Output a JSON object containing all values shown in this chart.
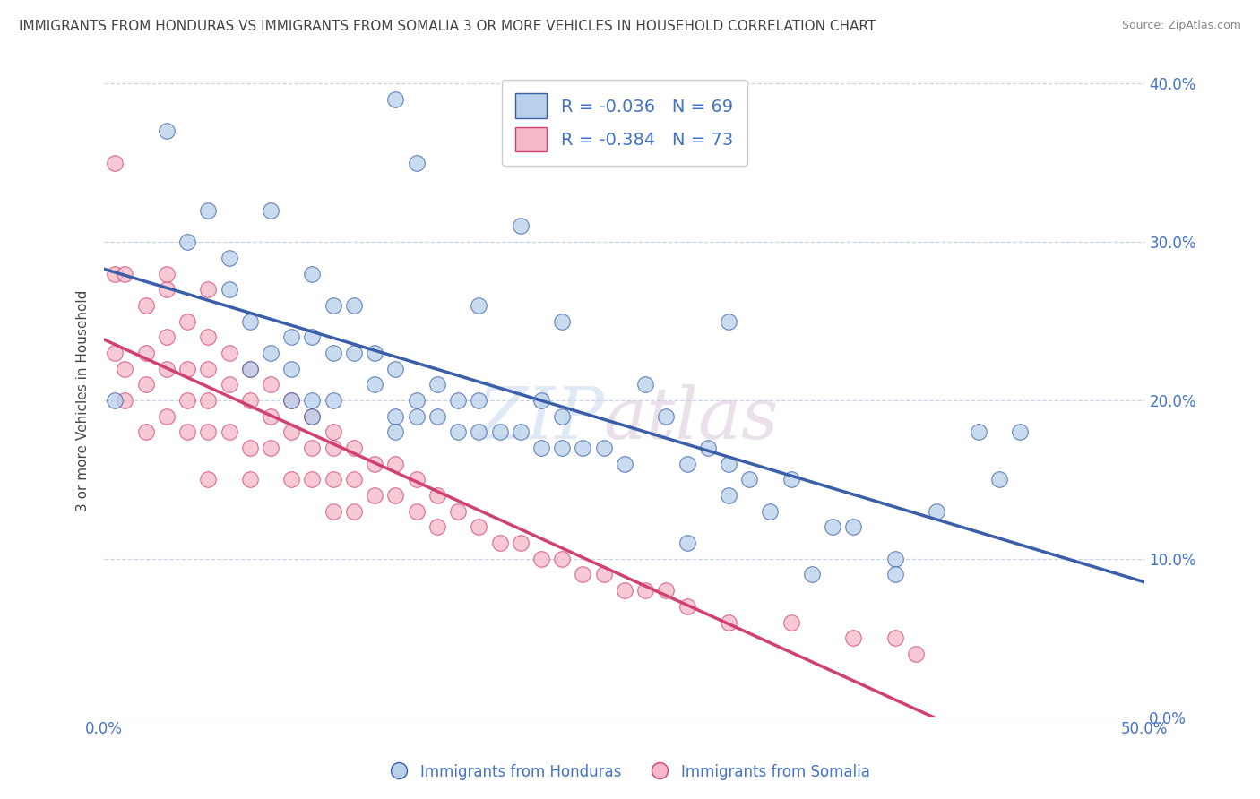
{
  "title": "IMMIGRANTS FROM HONDURAS VS IMMIGRANTS FROM SOMALIA 3 OR MORE VEHICLES IN HOUSEHOLD CORRELATION CHART",
  "source": "Source: ZipAtlas.com",
  "ylabel": "3 or more Vehicles in Household",
  "legend_blue_label": "Immigrants from Honduras",
  "legend_pink_label": "Immigrants from Somalia",
  "R_blue": -0.036,
  "N_blue": 69,
  "R_pink": -0.384,
  "N_pink": 73,
  "watermark_zip": "ZIP",
  "watermark_atlas": "atlas",
  "xlim": [
    0.0,
    0.5
  ],
  "ylim": [
    0.0,
    0.4
  ],
  "xticks": [
    0.0,
    0.1,
    0.2,
    0.3,
    0.4,
    0.5
  ],
  "yticks": [
    0.0,
    0.1,
    0.2,
    0.3,
    0.4
  ],
  "blue_color": "#b8d0ea",
  "pink_color": "#f5b8c8",
  "blue_line_color": "#3a5fa8",
  "pink_line_color": "#d04070",
  "title_color": "#444444",
  "tick_color": "#4472c4",
  "grid_color": "#c8d4e8",
  "background_color": "#ffffff",
  "blue_scatter_x": [
    0.005,
    0.03,
    0.04,
    0.05,
    0.06,
    0.07,
    0.08,
    0.08,
    0.09,
    0.09,
    0.1,
    0.1,
    0.1,
    0.11,
    0.11,
    0.12,
    0.12,
    0.13,
    0.13,
    0.14,
    0.14,
    0.14,
    0.15,
    0.15,
    0.16,
    0.16,
    0.17,
    0.17,
    0.18,
    0.18,
    0.19,
    0.2,
    0.2,
    0.21,
    0.21,
    0.22,
    0.22,
    0.23,
    0.24,
    0.25,
    0.26,
    0.27,
    0.28,
    0.29,
    0.3,
    0.3,
    0.31,
    0.32,
    0.33,
    0.35,
    0.36,
    0.38,
    0.4,
    0.43,
    0.44,
    0.06,
    0.07,
    0.09,
    0.1,
    0.11,
    0.14,
    0.15,
    0.18,
    0.22,
    0.28,
    0.3,
    0.34,
    0.38,
    0.42
  ],
  "blue_scatter_y": [
    0.2,
    0.37,
    0.3,
    0.32,
    0.29,
    0.25,
    0.32,
    0.23,
    0.22,
    0.2,
    0.28,
    0.24,
    0.2,
    0.26,
    0.23,
    0.26,
    0.23,
    0.23,
    0.21,
    0.22,
    0.19,
    0.18,
    0.2,
    0.19,
    0.21,
    0.19,
    0.2,
    0.18,
    0.2,
    0.18,
    0.18,
    0.31,
    0.18,
    0.2,
    0.17,
    0.19,
    0.17,
    0.17,
    0.17,
    0.16,
    0.21,
    0.19,
    0.16,
    0.17,
    0.16,
    0.14,
    0.15,
    0.13,
    0.15,
    0.12,
    0.12,
    0.1,
    0.13,
    0.15,
    0.18,
    0.27,
    0.22,
    0.24,
    0.19,
    0.2,
    0.39,
    0.35,
    0.26,
    0.25,
    0.11,
    0.25,
    0.09,
    0.09,
    0.18
  ],
  "pink_scatter_x": [
    0.005,
    0.005,
    0.01,
    0.01,
    0.02,
    0.02,
    0.02,
    0.02,
    0.03,
    0.03,
    0.03,
    0.03,
    0.04,
    0.04,
    0.04,
    0.04,
    0.05,
    0.05,
    0.05,
    0.05,
    0.05,
    0.06,
    0.06,
    0.06,
    0.07,
    0.07,
    0.07,
    0.07,
    0.08,
    0.08,
    0.08,
    0.09,
    0.09,
    0.09,
    0.1,
    0.1,
    0.1,
    0.11,
    0.11,
    0.11,
    0.11,
    0.12,
    0.12,
    0.12,
    0.13,
    0.13,
    0.14,
    0.14,
    0.15,
    0.15,
    0.16,
    0.16,
    0.17,
    0.18,
    0.19,
    0.2,
    0.21,
    0.22,
    0.23,
    0.24,
    0.25,
    0.26,
    0.27,
    0.28,
    0.3,
    0.33,
    0.36,
    0.38,
    0.39,
    0.005,
    0.01,
    0.03,
    0.05
  ],
  "pink_scatter_y": [
    0.28,
    0.23,
    0.22,
    0.2,
    0.26,
    0.23,
    0.21,
    0.18,
    0.27,
    0.24,
    0.22,
    0.19,
    0.25,
    0.22,
    0.2,
    0.18,
    0.24,
    0.22,
    0.2,
    0.18,
    0.15,
    0.23,
    0.21,
    0.18,
    0.22,
    0.2,
    0.17,
    0.15,
    0.21,
    0.19,
    0.17,
    0.2,
    0.18,
    0.15,
    0.19,
    0.17,
    0.15,
    0.18,
    0.17,
    0.15,
    0.13,
    0.17,
    0.15,
    0.13,
    0.16,
    0.14,
    0.16,
    0.14,
    0.15,
    0.13,
    0.14,
    0.12,
    0.13,
    0.12,
    0.11,
    0.11,
    0.1,
    0.1,
    0.09,
    0.09,
    0.08,
    0.08,
    0.08,
    0.07,
    0.06,
    0.06,
    0.05,
    0.05,
    0.04,
    0.35,
    0.28,
    0.28,
    0.27
  ]
}
